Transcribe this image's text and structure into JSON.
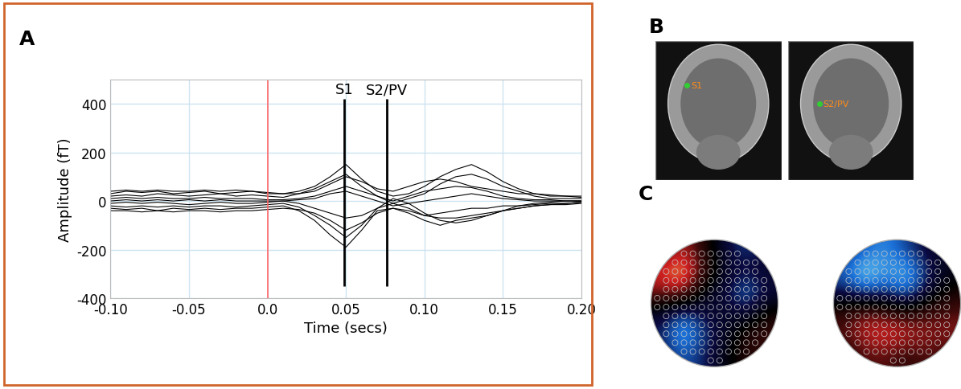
{
  "panel_labels": [
    "A",
    "B",
    "C"
  ],
  "chart_data": {
    "type": "line",
    "x_label": "Time (secs)",
    "y_label": "Amplitude (fT)",
    "x": [
      -0.1,
      -0.09,
      -0.08,
      -0.07,
      -0.06,
      -0.05,
      -0.04,
      -0.03,
      -0.02,
      -0.01,
      0.0,
      0.01,
      0.02,
      0.03,
      0.04,
      0.05,
      0.06,
      0.07,
      0.08,
      0.09,
      0.1,
      0.11,
      0.12,
      0.13,
      0.14,
      0.15,
      0.16,
      0.17,
      0.18,
      0.19,
      0.2
    ],
    "series": [
      {
        "color": "#000000",
        "values": [
          30,
          40,
          35,
          40,
          30,
          35,
          40,
          30,
          35,
          40,
          30,
          30,
          40,
          60,
          100,
          150,
          90,
          40,
          20,
          30,
          60,
          100,
          130,
          150,
          120,
          80,
          50,
          30,
          20,
          20,
          15
        ]
      },
      {
        "color": "#000000",
        "values": [
          -30,
          -35,
          -30,
          -40,
          -30,
          -35,
          -30,
          -35,
          -30,
          -30,
          -25,
          -20,
          -40,
          -80,
          -140,
          -190,
          -120,
          -40,
          -30,
          -40,
          -60,
          -50,
          -40,
          -30,
          -30,
          -20,
          -20,
          -15,
          -10,
          -10,
          -5
        ]
      },
      {
        "color": "#000000",
        "values": [
          20,
          25,
          20,
          30,
          25,
          20,
          25,
          30,
          20,
          25,
          20,
          15,
          30,
          50,
          80,
          110,
          60,
          20,
          -10,
          10,
          30,
          70,
          100,
          110,
          90,
          60,
          40,
          20,
          10,
          10,
          10
        ]
      },
      {
        "color": "#000000",
        "values": [
          -20,
          -25,
          -20,
          -25,
          -20,
          -25,
          -20,
          -20,
          -25,
          -20,
          -15,
          -10,
          -25,
          -60,
          -100,
          -150,
          -100,
          -30,
          10,
          -10,
          -50,
          -80,
          -90,
          -80,
          -60,
          -40,
          -30,
          -20,
          -15,
          -10,
          -5
        ]
      },
      {
        "color": "#000000",
        "values": [
          10,
          15,
          10,
          15,
          10,
          10,
          15,
          10,
          10,
          10,
          5,
          5,
          10,
          20,
          40,
          60,
          40,
          20,
          0,
          20,
          40,
          50,
          60,
          55,
          40,
          20,
          10,
          5,
          5,
          0,
          0
        ]
      },
      {
        "color": "#000000",
        "values": [
          -10,
          -5,
          -10,
          -5,
          -10,
          -15,
          -10,
          -5,
          -10,
          -10,
          -5,
          0,
          -10,
          -30,
          -50,
          -70,
          -60,
          -30,
          -10,
          -30,
          -60,
          -70,
          -70,
          -60,
          -50,
          -40,
          -20,
          -10,
          -5,
          0,
          0
        ]
      },
      {
        "color": "#000000",
        "values": [
          40,
          45,
          40,
          45,
          40,
          40,
          45,
          40,
          45,
          40,
          35,
          30,
          30,
          40,
          70,
          100,
          80,
          50,
          40,
          60,
          80,
          90,
          80,
          60,
          50,
          40,
          30,
          30,
          25,
          20,
          20
        ]
      },
      {
        "color": "#000000",
        "values": [
          -40,
          -40,
          -45,
          -40,
          -45,
          -40,
          -40,
          -45,
          -40,
          -40,
          -35,
          -30,
          -35,
          -50,
          -80,
          -120,
          -90,
          -50,
          -30,
          -50,
          -80,
          -100,
          -80,
          -70,
          -60,
          -40,
          -30,
          -20,
          -15,
          -15,
          -10
        ]
      },
      {
        "color": "#000000",
        "values": [
          0,
          5,
          0,
          5,
          0,
          5,
          0,
          5,
          0,
          0,
          0,
          0,
          5,
          10,
          30,
          40,
          20,
          0,
          -20,
          -10,
          0,
          10,
          20,
          30,
          20,
          10,
          5,
          0,
          0,
          0,
          0
        ]
      }
    ],
    "xlim": [
      -0.1,
      0.2
    ],
    "xticks": [
      {
        "value": -0.1,
        "label": "-0.10"
      },
      {
        "value": -0.05,
        "label": "-0.05"
      },
      {
        "value": 0.0,
        "label": "0.0"
      },
      {
        "value": 0.05,
        "label": "0.05"
      },
      {
        "value": 0.1,
        "label": "0.10"
      },
      {
        "value": 0.15,
        "label": "0.15"
      },
      {
        "value": 0.2,
        "label": "0.20"
      }
    ],
    "ylim": [
      -400,
      500
    ],
    "yticks": [
      -400,
      -200,
      0,
      200,
      400
    ],
    "grid": true,
    "onset": {
      "x": 0.0,
      "color": "#ff6666"
    },
    "markers": [
      {
        "label": "S1",
        "x": 0.049,
        "ymin": -350,
        "ymax": 420
      },
      {
        "label": "S2/PV",
        "x": 0.076,
        "ymin": -350,
        "ymax": 420
      }
    ]
  },
  "mri": {
    "labels": [
      "S1",
      "S2/PV"
    ],
    "color": "#ff8c1a"
  },
  "topomaps": [
    {
      "cells": [
        [
          0.3,
          0.6,
          0.2,
          -0.3,
          -0.5,
          -0.3
        ],
        [
          0.7,
          1.0,
          0.3,
          -0.2,
          -0.3,
          -0.2
        ],
        [
          0.5,
          0.6,
          -0.1,
          -0.3,
          -0.7,
          -0.3
        ],
        [
          -0.2,
          -0.6,
          -0.3,
          -0.2,
          -0.3,
          0.1
        ],
        [
          -0.4,
          -0.9,
          -0.5,
          -0.2,
          0.2,
          0.3
        ],
        [
          -0.3,
          -0.6,
          -0.4,
          -0.1,
          0.2,
          0.2
        ]
      ]
    },
    {
      "cells": [
        [
          -0.3,
          -0.5,
          -0.6,
          -0.4,
          -0.2,
          -0.1
        ],
        [
          -0.5,
          -0.8,
          -0.6,
          -0.7,
          -0.3,
          -0.1
        ],
        [
          -0.3,
          -0.5,
          -0.4,
          -0.6,
          -0.2,
          0.1
        ],
        [
          0.2,
          0.4,
          0.3,
          0.2,
          0.3,
          0.3
        ],
        [
          0.3,
          0.5,
          0.6,
          0.5,
          0.4,
          0.4
        ],
        [
          0.1,
          0.3,
          0.3,
          0.2,
          0.3,
          0.2
        ]
      ]
    }
  ]
}
